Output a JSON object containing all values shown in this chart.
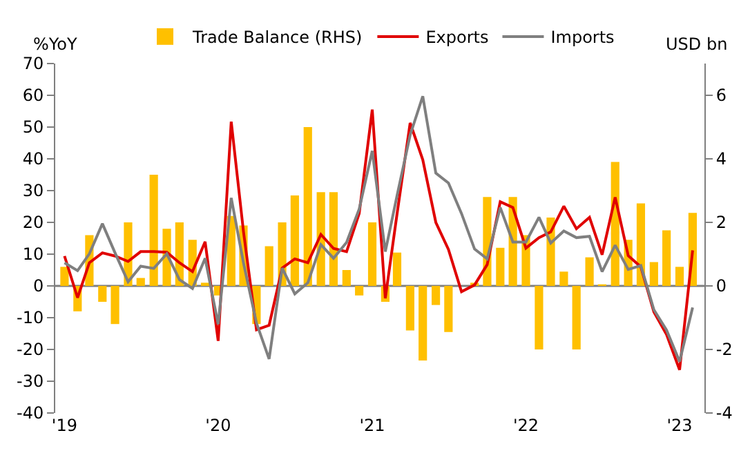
{
  "chart_data": {
    "type": "line",
    "ylabel": "%YoY",
    "y2label": "USD bn",
    "x": [
      "2019-01",
      "2019-02",
      "2019-03",
      "2019-04",
      "2019-05",
      "2019-06",
      "2019-07",
      "2019-08",
      "2019-09",
      "2019-10",
      "2019-11",
      "2019-12",
      "2020-01",
      "2020-02",
      "2020-03",
      "2020-04",
      "2020-05",
      "2020-06",
      "2020-07",
      "2020-08",
      "2020-09",
      "2020-10",
      "2020-11",
      "2020-12",
      "2021-01",
      "2021-02",
      "2021-03",
      "2021-04",
      "2021-05",
      "2021-06",
      "2021-07",
      "2021-08",
      "2021-09",
      "2021-10",
      "2021-11",
      "2021-12",
      "2022-01",
      "2022-02",
      "2022-03",
      "2022-04",
      "2022-05",
      "2022-06",
      "2022-07",
      "2022-08",
      "2022-09",
      "2022-10",
      "2022-11",
      "2022-12",
      "2023-01",
      "2023-02"
    ],
    "series": [
      {
        "name": "Trade Balance (RHS)",
        "type": "bar",
        "axis": "y2",
        "color": "#ffc000",
        "values": [
          0.6,
          -0.8,
          1.6,
          -0.5,
          -1.2,
          2.0,
          0.25,
          3.5,
          1.8,
          2.0,
          1.45,
          0.1,
          -0.3,
          2.2,
          1.9,
          -1.2,
          1.25,
          2.0,
          2.85,
          5.0,
          2.95,
          2.95,
          0.5,
          -0.3,
          2.0,
          -0.5,
          1.05,
          -1.4,
          -2.35,
          -0.6,
          -1.45,
          0.0,
          0.1,
          2.8,
          1.2,
          2.8,
          1.6,
          -2.0,
          2.15,
          0.45,
          -2.0,
          0.9,
          0.05,
          3.9,
          1.45,
          2.6,
          0.75,
          1.75,
          0.6,
          2.3
        ]
      },
      {
        "name": "Exports",
        "color": "#e00000",
        "values": [
          9.4,
          -3.7,
          7.3,
          10.4,
          9.4,
          7.7,
          10.8,
          10.8,
          10.6,
          7.3,
          4.5,
          13.9,
          -17.3,
          51.7,
          17.2,
          -13.8,
          -12.4,
          5.6,
          8.5,
          7.3,
          16.2,
          11.8,
          10.8,
          22.8,
          55.5,
          -3.9,
          22.8,
          51.3,
          39.7,
          20.0,
          11.5,
          -1.8,
          0.3,
          6.7,
          26.5,
          24.7,
          11.9,
          15.2,
          17.0,
          25.1,
          18.0,
          21.6,
          9.8,
          27.9,
          9.5,
          6.0,
          -8.2,
          -15.3,
          -26.4,
          11.2
        ]
      },
      {
        "name": "Imports",
        "color": "#7f7f7f",
        "values": [
          7.3,
          4.8,
          10.1,
          19.6,
          10.4,
          1.3,
          6.2,
          5.5,
          10.1,
          2.0,
          -0.8,
          8.7,
          -12.1,
          27.7,
          7.3,
          -11.7,
          -23.0,
          5.6,
          -2.5,
          1.0,
          13.0,
          8.7,
          13.7,
          24.2,
          42.5,
          10.8,
          28.5,
          47.5,
          59.7,
          35.5,
          32.4,
          22.8,
          11.6,
          8.5,
          24.7,
          13.8,
          13.8,
          21.6,
          13.5,
          17.3,
          15.2,
          15.6,
          4.5,
          12.8,
          5.2,
          6.4,
          -7.5,
          -13.9,
          -23.8,
          -6.8
        ]
      }
    ],
    "xlim": [
      "2018-12-10",
      "2023-03-01"
    ],
    "xticks": [
      {
        "value": "2019-01",
        "label": "'19"
      },
      {
        "value": "2020-01",
        "label": "'20"
      },
      {
        "value": "2021-01",
        "label": "'21"
      },
      {
        "value": "2022-01",
        "label": "'22"
      },
      {
        "value": "2023-01",
        "label": "'23"
      }
    ],
    "ylim": [
      -40,
      70
    ],
    "yticks": [
      -40,
      -30,
      -20,
      -10,
      0,
      10,
      20,
      30,
      40,
      50,
      60,
      70
    ],
    "y2lim": [
      -4,
      7
    ],
    "y2ticks": [
      -4,
      -2,
      0,
      2,
      4,
      6
    ],
    "ref_lines": [
      {
        "axis": "y",
        "value": 0,
        "color": "#7f7f7f"
      }
    ],
    "legend": "top",
    "marker": "none",
    "line_style": "solid"
  }
}
